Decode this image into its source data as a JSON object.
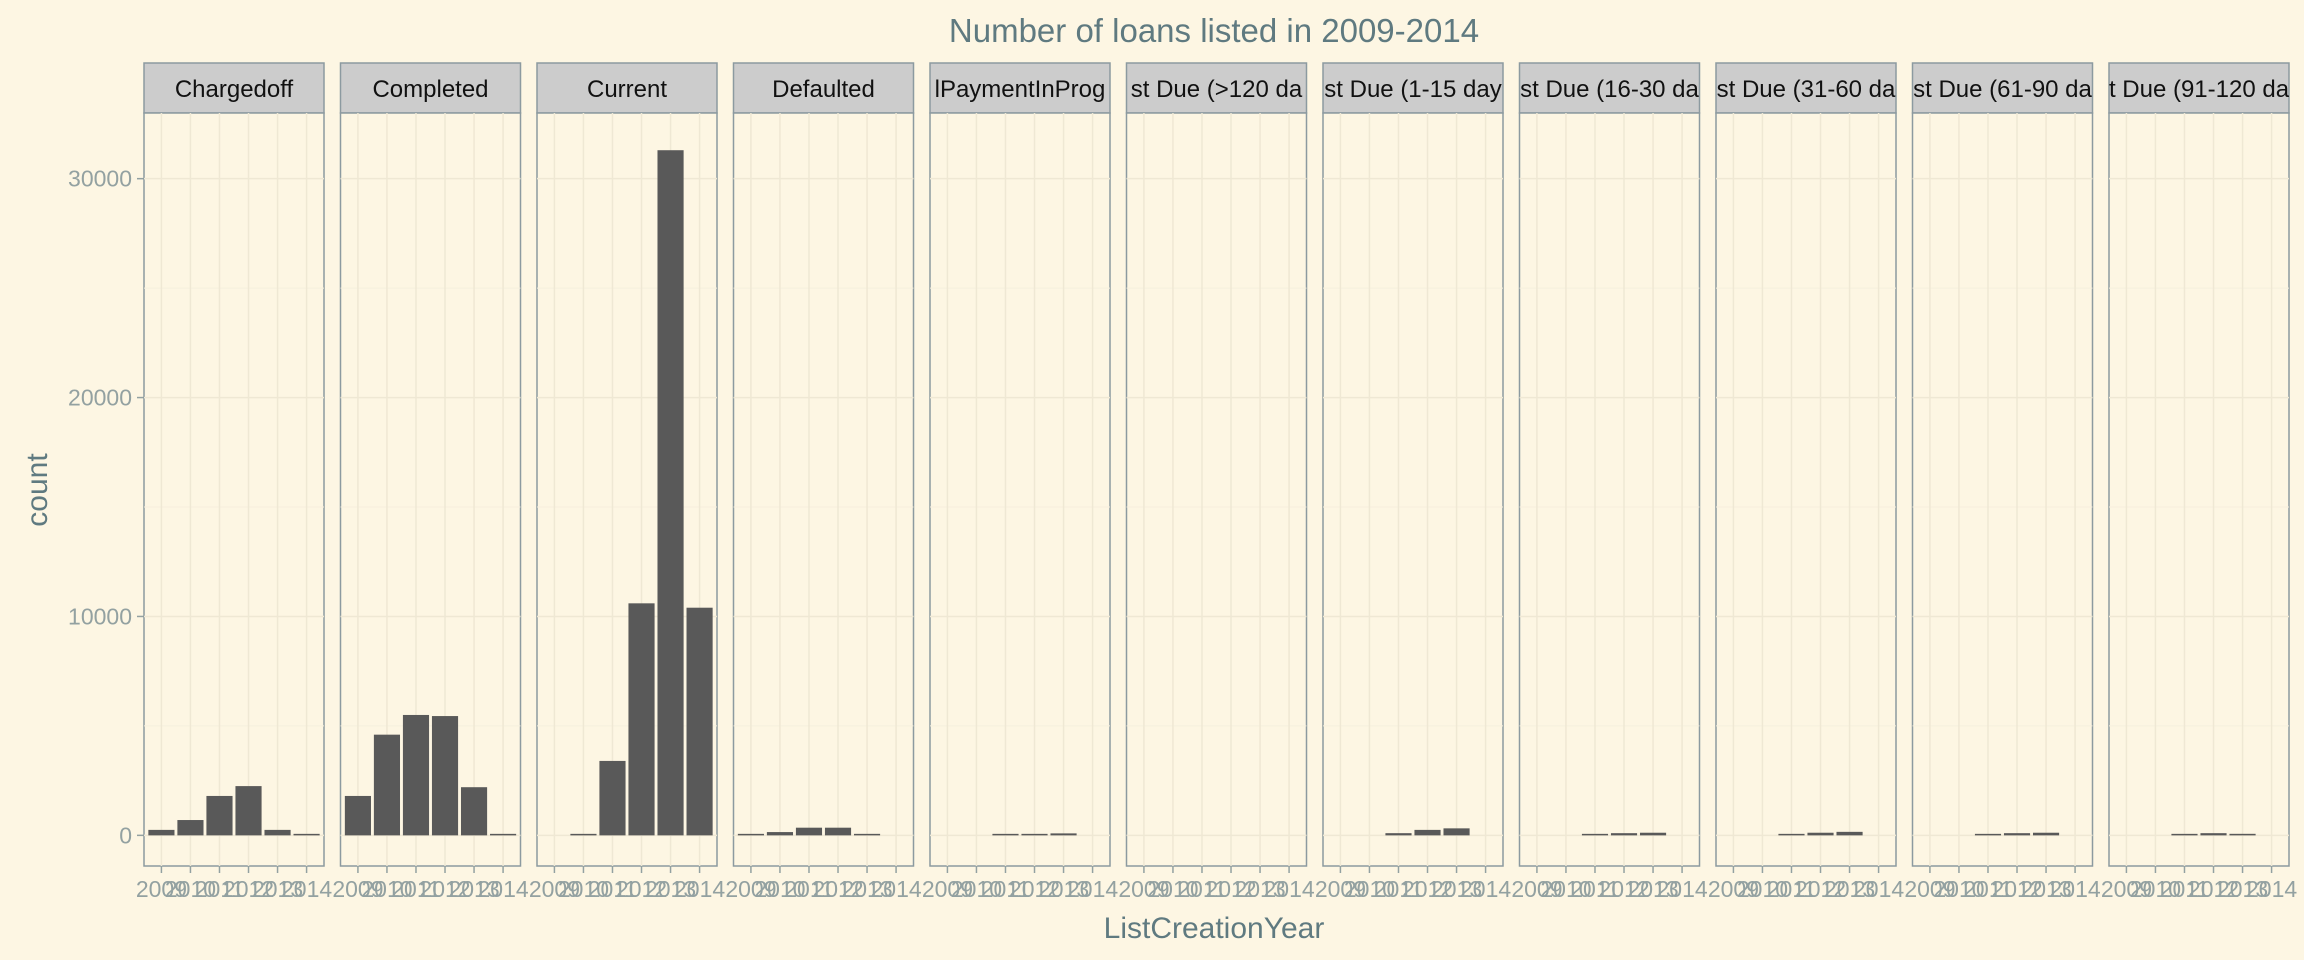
{
  "chart_data": {
    "type": "bar",
    "title": "Number of loans listed in 2009-2014",
    "xlabel": "ListCreationYear",
    "ylabel": "count",
    "ylim": [
      -1400,
      33000
    ],
    "yticks": [
      0,
      10000,
      20000,
      30000
    ],
    "x": [
      2009,
      2010,
      2011,
      2012,
      2013,
      2014
    ],
    "xtick_labels": [
      "2009",
      "2010",
      "2011",
      "2012",
      "2013",
      "2014"
    ],
    "bar_color": "#595959",
    "background": "#fdf6e3",
    "strip_color": "#cccccc",
    "grid": true,
    "facets": [
      {
        "label": "Chargedoff",
        "values": [
          250,
          700,
          1800,
          2250,
          250,
          10
        ]
      },
      {
        "label": "Completed",
        "values": [
          1800,
          4600,
          5500,
          5450,
          2200,
          20
        ]
      },
      {
        "label": "Current",
        "values": [
          0,
          20,
          3400,
          10600,
          31300,
          10400
        ]
      },
      {
        "label": "Defaulted",
        "values": [
          60,
          150,
          350,
          350,
          50,
          0
        ]
      },
      {
        "label": "lPaymentInProg",
        "values": [
          0,
          0,
          30,
          50,
          90,
          0
        ]
      },
      {
        "label": "st Due (>120 da",
        "values": [
          0,
          0,
          0,
          0,
          0,
          0
        ]
      },
      {
        "label": "st Due (1-15 day",
        "values": [
          0,
          0,
          100,
          250,
          320,
          0
        ]
      },
      {
        "label": "st Due (16-30 da",
        "values": [
          0,
          0,
          40,
          100,
          120,
          0
        ]
      },
      {
        "label": "st Due (31-60 da",
        "values": [
          0,
          0,
          50,
          120,
          160,
          0
        ]
      },
      {
        "label": "st Due (61-90 da",
        "values": [
          0,
          0,
          40,
          100,
          120,
          0
        ]
      },
      {
        "label": "t Due (91-120 da",
        "values": [
          0,
          0,
          40,
          100,
          70,
          0
        ]
      }
    ]
  }
}
